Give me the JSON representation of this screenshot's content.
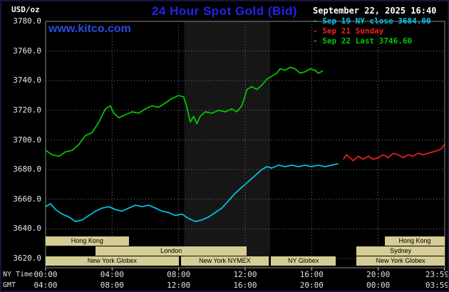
{
  "frame": {
    "bg": "#000000",
    "border_color": "#14143c",
    "plot_border_color": "#8a8a8a",
    "grid_color": "#7a7a7a",
    "band_color": "#161616",
    "tick_color": "#cccccc"
  },
  "header": {
    "unit_label": "USD/oz",
    "title": "24 Hour Spot Gold (Bid)",
    "title_color": "#2222ee",
    "datetime": "September 22, 2025 16:40",
    "watermark": "www.kitco.com",
    "watermark_color": "#2a4ae0",
    "legend": [
      {
        "text": "- Sep 19 NY close 3684.00",
        "color": "#00c8f0"
      },
      {
        "text": "- Sep 21 Sunday",
        "color": "#f02020"
      },
      {
        "text": "- Sep 22 Last 3746.60",
        "color": "#00cc00"
      }
    ]
  },
  "axes": {
    "y_ticks": [
      "3780.0",
      "3760.0",
      "3740.0",
      "3720.0",
      "3700.0",
      "3680.0",
      "3660.0",
      "3640.0",
      "3620.0"
    ],
    "x_axis_rows": [
      {
        "label": "NY Time",
        "ticks": [
          "00:00",
          "04:00",
          "08:00",
          "12:00",
          "16:00",
          "20:00",
          "23:59"
        ]
      },
      {
        "label": "GMT",
        "ticks": [
          "04:00",
          "08:00",
          "12:00",
          "16:00",
          "20:00",
          "00:00",
          "03:59"
        ]
      }
    ],
    "x_tick_hours": [
      0,
      4,
      8,
      12,
      16,
      20,
      23.98
    ]
  },
  "sessions": {
    "fill": "#d6cd96",
    "text_color": "#000000",
    "rows": [
      [
        {
          "label": "Hong Kong",
          "start": 0,
          "end": 5.0
        },
        {
          "label": "Hong Kong",
          "start": 20.4,
          "end": 24
        }
      ],
      [
        {
          "label": "London",
          "start": 3.0,
          "end": 12.1
        },
        {
          "label": "Sydney",
          "start": 18.7,
          "end": 24
        }
      ],
      [
        {
          "label": "New York Globex",
          "start": 0,
          "end": 8.0
        },
        {
          "label": "New York NYMEX",
          "start": 8.15,
          "end": 13.4
        },
        {
          "label": "NY Globex",
          "start": 13.55,
          "end": 17.45
        },
        {
          "label": "New York Globex",
          "start": 18.7,
          "end": 24
        }
      ]
    ]
  },
  "chart_data": {
    "type": "line",
    "title": "24 Hour Spot Gold (Bid)",
    "xlabel": "NY Time",
    "ylabel": "USD/oz",
    "x_range_hours": [
      0,
      24
    ],
    "ylim": [
      3620,
      3780
    ],
    "y_tick_step": 20,
    "grid": true,
    "legend_position": "top-right",
    "nymex_band_hours": [
      8.33,
      13.5
    ],
    "series": [
      {
        "name": "Sep 19 NY close 3684.00",
        "color": "#00c8f0",
        "points": [
          [
            0,
            3655
          ],
          [
            0.3,
            3657
          ],
          [
            0.6,
            3653
          ],
          [
            1,
            3650
          ],
          [
            1.4,
            3648
          ],
          [
            1.8,
            3645
          ],
          [
            2.2,
            3646
          ],
          [
            2.6,
            3649
          ],
          [
            3,
            3652
          ],
          [
            3.4,
            3654
          ],
          [
            3.8,
            3655
          ],
          [
            4.2,
            3653
          ],
          [
            4.6,
            3652
          ],
          [
            5,
            3654
          ],
          [
            5.4,
            3656
          ],
          [
            5.8,
            3655
          ],
          [
            6.2,
            3656
          ],
          [
            6.6,
            3654
          ],
          [
            7,
            3652
          ],
          [
            7.4,
            3651
          ],
          [
            7.8,
            3649
          ],
          [
            8.2,
            3650
          ],
          [
            8.6,
            3647
          ],
          [
            9,
            3645
          ],
          [
            9.4,
            3646
          ],
          [
            9.8,
            3648
          ],
          [
            10.2,
            3651
          ],
          [
            10.6,
            3654
          ],
          [
            11,
            3659
          ],
          [
            11.4,
            3664
          ],
          [
            11.8,
            3668
          ],
          [
            12.2,
            3672
          ],
          [
            12.6,
            3676
          ],
          [
            13,
            3680
          ],
          [
            13.3,
            3682
          ],
          [
            13.6,
            3681
          ],
          [
            14,
            3683
          ],
          [
            14.4,
            3682
          ],
          [
            14.8,
            3683
          ],
          [
            15.2,
            3682
          ],
          [
            15.6,
            3683
          ],
          [
            16,
            3682
          ],
          [
            16.4,
            3683
          ],
          [
            16.8,
            3682
          ],
          [
            17.2,
            3683
          ],
          [
            17.6,
            3684
          ]
        ]
      },
      {
        "name": "Sep 21 Sunday",
        "color": "#f02020",
        "points": [
          [
            17.9,
            3687
          ],
          [
            18.1,
            3690
          ],
          [
            18.3,
            3688
          ],
          [
            18.5,
            3686
          ],
          [
            18.8,
            3689
          ],
          [
            19.1,
            3687
          ],
          [
            19.4,
            3689
          ],
          [
            19.7,
            3687
          ],
          [
            20,
            3688
          ],
          [
            20.3,
            3690
          ],
          [
            20.6,
            3688
          ],
          [
            20.9,
            3691
          ],
          [
            21.2,
            3690
          ],
          [
            21.5,
            3688
          ],
          [
            21.8,
            3690
          ],
          [
            22.1,
            3689
          ],
          [
            22.4,
            3691
          ],
          [
            22.7,
            3690
          ],
          [
            23,
            3691
          ],
          [
            23.3,
            3692
          ],
          [
            23.6,
            3693
          ],
          [
            23.8,
            3694
          ],
          [
            23.98,
            3697
          ]
        ]
      },
      {
        "name": "Sep 22 Last 3746.60",
        "color": "#00cc00",
        "points": [
          [
            0,
            3693
          ],
          [
            0.4,
            3690
          ],
          [
            0.8,
            3689
          ],
          [
            1.2,
            3692
          ],
          [
            1.6,
            3693
          ],
          [
            2,
            3697
          ],
          [
            2.4,
            3703
          ],
          [
            2.8,
            3705
          ],
          [
            3.2,
            3712
          ],
          [
            3.6,
            3721
          ],
          [
            3.9,
            3723
          ],
          [
            4.1,
            3718
          ],
          [
            4.4,
            3715
          ],
          [
            4.8,
            3717
          ],
          [
            5.2,
            3719
          ],
          [
            5.6,
            3718
          ],
          [
            6,
            3721
          ],
          [
            6.4,
            3723
          ],
          [
            6.8,
            3722
          ],
          [
            7.2,
            3725
          ],
          [
            7.6,
            3728
          ],
          [
            8,
            3730
          ],
          [
            8.3,
            3729
          ],
          [
            8.5,
            3722
          ],
          [
            8.7,
            3712
          ],
          [
            8.9,
            3716
          ],
          [
            9.1,
            3711
          ],
          [
            9.3,
            3716
          ],
          [
            9.6,
            3719
          ],
          [
            10,
            3718
          ],
          [
            10.4,
            3720
          ],
          [
            10.8,
            3719
          ],
          [
            11.2,
            3721
          ],
          [
            11.5,
            3719
          ],
          [
            11.8,
            3723
          ],
          [
            12,
            3730
          ],
          [
            12.1,
            3734
          ],
          [
            12.4,
            3736
          ],
          [
            12.7,
            3734
          ],
          [
            13,
            3737
          ],
          [
            13.3,
            3741
          ],
          [
            13.6,
            3743
          ],
          [
            13.9,
            3745
          ],
          [
            14.1,
            3748
          ],
          [
            14.4,
            3747
          ],
          [
            14.7,
            3749
          ],
          [
            15,
            3748
          ],
          [
            15.3,
            3745
          ],
          [
            15.6,
            3746
          ],
          [
            15.9,
            3748
          ],
          [
            16.2,
            3747
          ],
          [
            16.4,
            3745
          ],
          [
            16.67,
            3746.6
          ]
        ]
      }
    ]
  }
}
